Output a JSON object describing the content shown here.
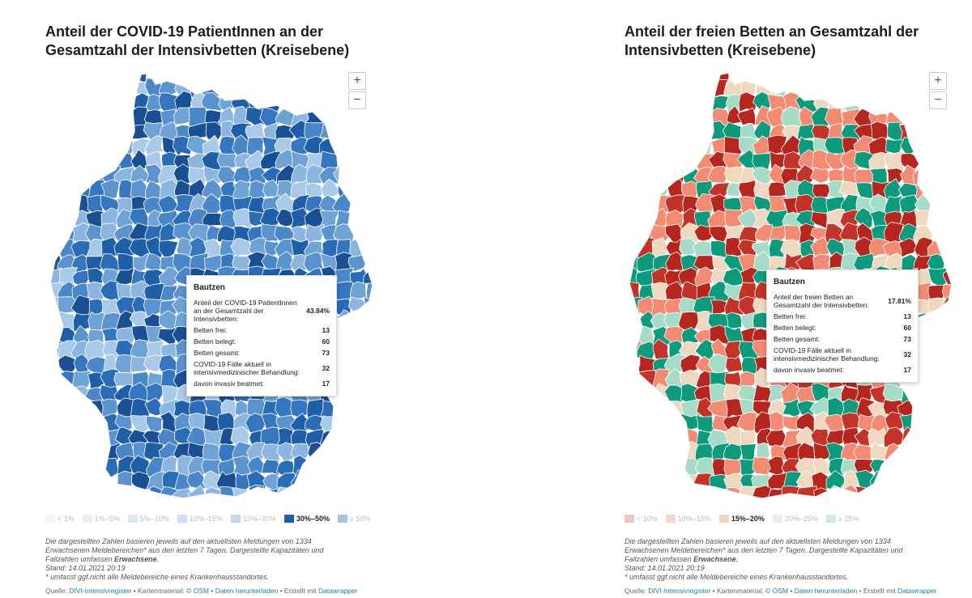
{
  "left_panel": {
    "title_line1": "Anteil der COVID-19 PatientInnen an der",
    "title_line2": "Gesamtzahl der Intensivbetten (Kreisebene)",
    "zoom_in": "+",
    "zoom_out": "−",
    "tooltip": {
      "name": "Bautzen",
      "rows": [
        {
          "label": "Anteil der COVID-19 PatientInnen an der Gesamtzahl der Intensivbetten:",
          "value": "43.84%"
        },
        {
          "label": "Betten frei:",
          "value": "13"
        },
        {
          "label": "Betten belegt:",
          "value": "60"
        },
        {
          "label": "Betten gesamt:",
          "value": "73"
        },
        {
          "label": "COVID-19 Fälle aktuell in intensivmedizinischer Behandlung:",
          "value": "32"
        },
        {
          "label": "davon invasiv beatmet:",
          "value": "17"
        }
      ]
    },
    "legend": [
      {
        "label": "< 1%",
        "color": "#f4f7fc",
        "active": false
      },
      {
        "label": "1%–5%",
        "color": "#e8eff9",
        "active": false
      },
      {
        "label": "5%–10%",
        "color": "#dce7f5",
        "active": false
      },
      {
        "label": "10%–15%",
        "color": "#d0e0f2",
        "active": false
      },
      {
        "label": "15%–30%",
        "color": "#c4d8ee",
        "active": false
      },
      {
        "label": "30%–50%",
        "color": "#1f5fa8",
        "active": true
      },
      {
        "label": "≥ 50%",
        "color": "#a8c3e3",
        "active": false
      }
    ],
    "palette": [
      "#1f5fa8",
      "#2b6cb6",
      "#3576bf",
      "#4a87c9",
      "#5b93ce",
      "#6fa2d5",
      "#8cb6df",
      "#a9c9e8",
      "#1a4f93"
    ],
    "note_line1": "Die dargestellten Zahlen basieren jeweils auf den aktuellsten Meldungen von 1334",
    "note_line2": "Erwachsenen Meldebereichen* aus den letzten 7 Tagen. Dargestellte Kapazitäten und",
    "note_line3_pre": "Fallzahlen umfassen ",
    "note_line3_bold": "Erwachsene",
    "note_line3_post": ".",
    "note_line4": "Stand: 14.01.2021 20:19",
    "note_line5": "* umfasst ggf.nicht alle Meldebereiche eines Krankenhausstandortes.",
    "source": {
      "prefix": "Quelle: ",
      "link1": "DIVI-Intensivregister",
      "sep1": " • Kartenmaterial: ",
      "link2": "© OSM",
      "sep2": " • ",
      "link3": "Daten herunterladen",
      "sep3": " • Erstellt mit ",
      "link4": "Datawrapper"
    }
  },
  "right_panel": {
    "title_line1": "Anteil der freien Betten an Gesamtzahl der",
    "title_line2": "Intensivbetten (Kreisebene)",
    "zoom_in": "+",
    "zoom_out": "−",
    "tooltip": {
      "name": "Bautzen",
      "rows": [
        {
          "label": "Anteil der freien Betten an Gesamtzahl der Intensivbetten:",
          "value": "17.81%"
        },
        {
          "label": "Betten frei:",
          "value": "13"
        },
        {
          "label": "Betten belegt:",
          "value": "60"
        },
        {
          "label": "Betten gesamt:",
          "value": "73"
        },
        {
          "label": "COVID-19 Fälle aktuell in intensivmedizinischer Behandlung:",
          "value": "32"
        },
        {
          "label": "davon invasiv beatmet:",
          "value": "17"
        }
      ]
    },
    "legend": [
      {
        "label": "< 10%",
        "color": "#f2c6c0",
        "active": false
      },
      {
        "label": "10%–15%",
        "color": "#f9d6cc",
        "active": false
      },
      {
        "label": "15%–20%",
        "color": "#eed7bd",
        "active": true
      },
      {
        "label": "20%–25%",
        "color": "#e6efea",
        "active": false
      },
      {
        "label": "≥ 25%",
        "color": "#cfe9e0",
        "active": false
      }
    ],
    "palette": [
      "#b5261e",
      "#b5261e",
      "#f38a73",
      "#f38a73",
      "#efd8c0",
      "#0e9a7c",
      "#0e9a7c",
      "#a6dcc7",
      "#c2332a"
    ],
    "note_line1": "Die dargestellten Zahlen basieren jeweils auf den aktuellsten Meldungen von 1334",
    "note_line2": "Erwachsenen Meldebereichen* aus den letzten 7 Tagen. Dargestellte Kapazitäten und",
    "note_line3_pre": "Fallzahlen umfassen ",
    "note_line3_bold": "Erwachsene",
    "note_line3_post": ".",
    "note_line4": "Stand: 14.01.2021 20:19",
    "note_line5": "* umfasst ggf.nicht alle Meldebereiche eines Krankenhausstandortes.",
    "source": {
      "prefix": "Quelle: ",
      "link1": "DIVI-Intensivregister",
      "sep1": " • Kartenmaterial: ",
      "link2": "© OSM",
      "sep2": " • ",
      "link3": "Daten herunterladen",
      "sep3": " • Erstellt mit ",
      "link4": "Datawrapper"
    }
  }
}
